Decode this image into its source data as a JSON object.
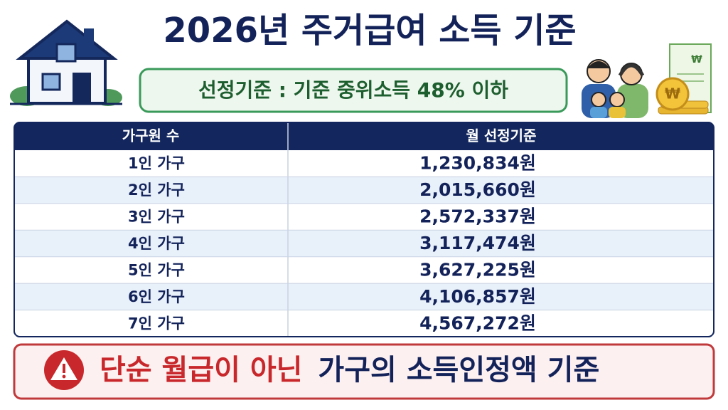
{
  "header": {
    "title": "2026년 주거급여 소득 기준",
    "subtitle": "선정기준 : 기준 중위소득 48% 이하"
  },
  "icons": {
    "currency": "₩"
  },
  "table": {
    "columns": [
      "가구원 수",
      "월 선정기준"
    ],
    "rows": [
      [
        "1인 가구",
        "1,230,834원"
      ],
      [
        "2인 가구",
        "2,015,660원"
      ],
      [
        "3인 가구",
        "2,572,337원"
      ],
      [
        "4인 가구",
        "3,117,474원"
      ],
      [
        "5인 가구",
        "3,627,225원"
      ],
      [
        "6인 가구",
        "4,106,857원"
      ],
      [
        "7인 가구",
        "4,567,272원"
      ]
    ]
  },
  "footer": {
    "highlight": "단순 월급이 아닌",
    "text": "가구의 소득인정액 기준"
  }
}
